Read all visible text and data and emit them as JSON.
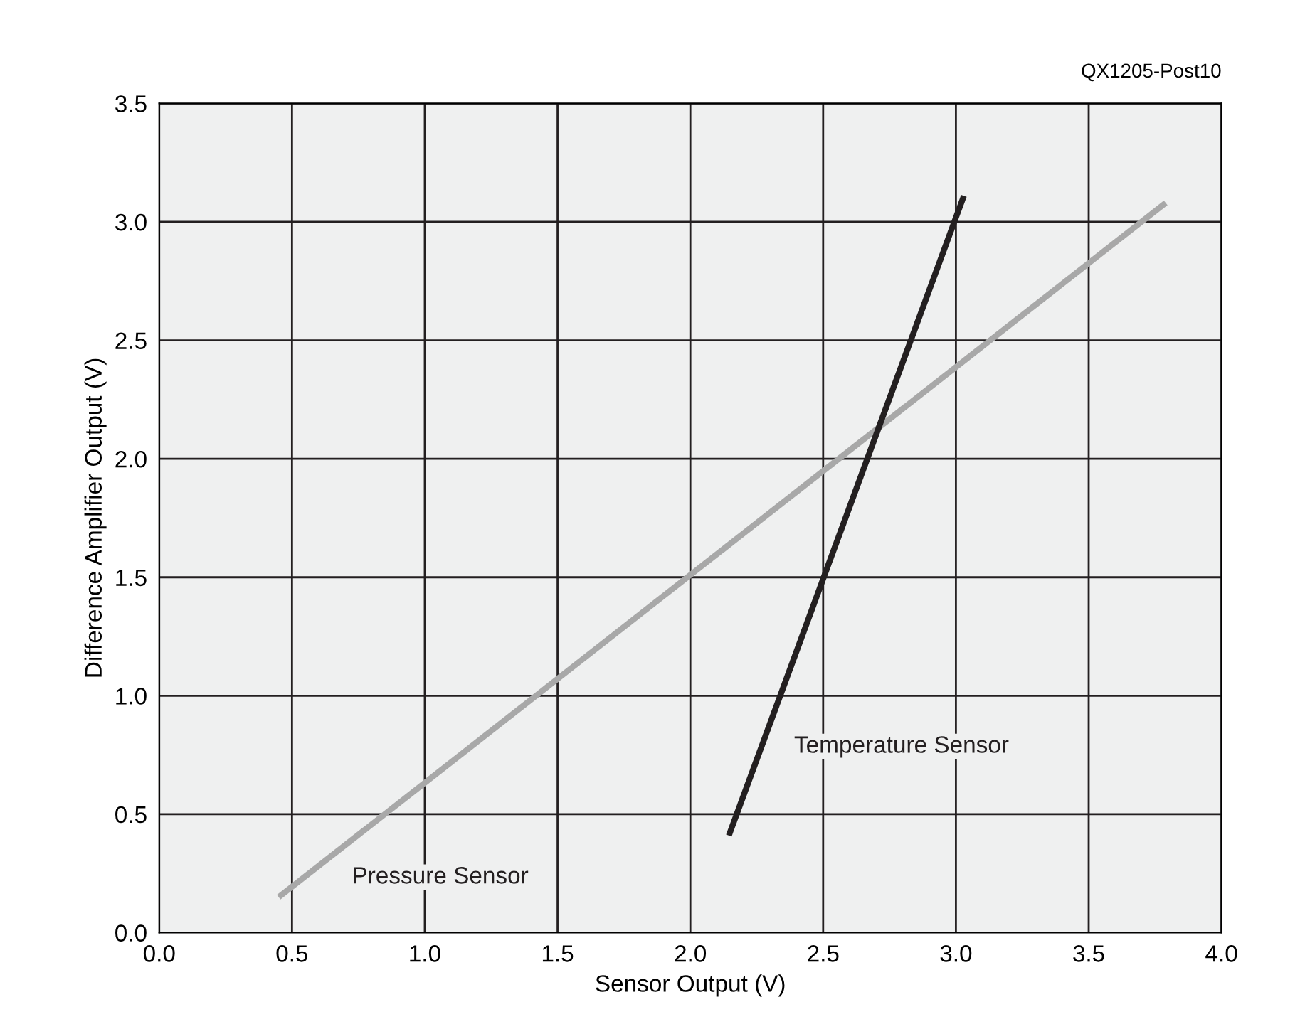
{
  "chart_data": {
    "type": "line",
    "xlabel": "Sensor Output (V)",
    "ylabel": "Difference Amplifier Output (V)",
    "xlim": [
      0,
      4
    ],
    "ylim": [
      0,
      3.5
    ],
    "xticks": [
      {
        "value": 0,
        "label": "0.0"
      },
      0.5,
      {
        "value": 1,
        "label": "1.0"
      },
      1.5,
      {
        "value": 2,
        "label": "2.0"
      },
      2.5,
      {
        "value": 3,
        "label": "3.0"
      },
      3.5,
      {
        "value": 4,
        "label": "4.0"
      }
    ],
    "yticks": [
      {
        "value": 0,
        "label": "0.0"
      },
      0.5,
      {
        "value": 1,
        "label": "1.0"
      },
      1.5,
      {
        "value": 2,
        "label": "2.0"
      },
      2.5,
      {
        "value": 3,
        "label": "3.0"
      },
      3.5
    ],
    "grid": true,
    "legend": false,
    "marker": "none",
    "line_style": "solid",
    "series": [
      {
        "name": "Pressure Sensor",
        "color": "#a8a8a8",
        "x": [
          0.45,
          3.79
        ],
        "values": [
          0.15,
          3.08
        ]
      },
      {
        "name": "Temperature Sensor",
        "color": "#231f20",
        "x": [
          2.145,
          3.03
        ],
        "values": [
          0.41,
          3.11
        ]
      }
    ],
    "annotations": [
      "QX1205-Post10"
    ]
  }
}
